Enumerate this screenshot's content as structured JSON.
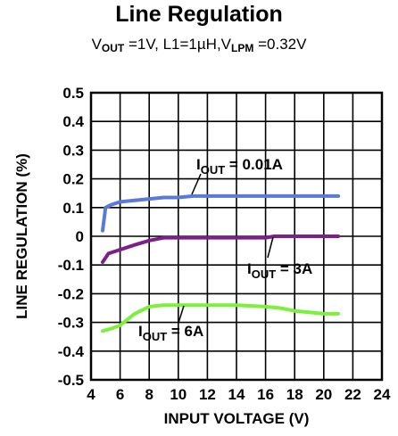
{
  "chart_data": {
    "type": "line",
    "title": "Line Regulation",
    "subtitle": {
      "text_parts": [
        {
          "t": "V"
        },
        {
          "sub": "OUT"
        },
        {
          "t": " =1V, L1=1µH,V"
        },
        {
          "sub": "LPM"
        },
        {
          "t": " =0.32V"
        }
      ]
    },
    "xlabel": "INPUT VOLTAGE (V)",
    "ylabel": "LINE REGULATION (%)",
    "xlim": [
      4,
      24
    ],
    "ylim": [
      -0.5,
      0.5
    ],
    "x_ticks": [
      4,
      6,
      8,
      10,
      12,
      14,
      16,
      18,
      20,
      22,
      24
    ],
    "y_ticks": [
      0.5,
      0.4,
      0.3,
      0.2,
      0.1,
      0,
      -0.1,
      -0.2,
      -0.3,
      -0.4,
      -0.5
    ],
    "y_tick_labels": [
      "0.5",
      "0.4",
      "0.3",
      "0.2",
      "0.1",
      "0",
      "-0.1",
      "-0.2",
      "-0.3",
      "-0.4",
      "-0.5"
    ],
    "grid": true,
    "legend": "none",
    "series": [
      {
        "color": "#5b79d6",
        "label_main": "I",
        "label_sub": "OUT",
        "label_rest": " = 0.01A",
        "x": [
          4.8,
          5.0,
          5.4,
          6.0,
          7.0,
          8.0,
          9.0,
          10.0,
          11.0,
          12.0,
          14.0,
          16.0,
          18.0,
          20.0,
          21.0
        ],
        "y": [
          0.02,
          0.1,
          0.11,
          0.12,
          0.125,
          0.13,
          0.135,
          0.135,
          0.14,
          0.14,
          0.14,
          0.14,
          0.14,
          0.14,
          0.14
        ]
      },
      {
        "color": "#7d1f8a",
        "label_main": "I",
        "label_sub": "OUT",
        "label_rest": " = 3A",
        "x": [
          4.8,
          5.2,
          5.8,
          7.0,
          8.0,
          9.0,
          10.0,
          12.0,
          14.0,
          16.0,
          16.6,
          18.0,
          20.0,
          21.0
        ],
        "y": [
          -0.09,
          -0.06,
          -0.05,
          -0.03,
          -0.015,
          -0.005,
          -0.005,
          -0.005,
          -0.005,
          -0.005,
          0.0,
          0.0,
          0.0,
          0.0
        ]
      },
      {
        "color": "#7cf03a",
        "label_main": "I",
        "label_sub": "OUT",
        "label_rest": " = 6A",
        "x": [
          4.8,
          5.5,
          6.0,
          7.0,
          8.0,
          9.0,
          10.0,
          12.0,
          14.0,
          16.0,
          17.0,
          18.0,
          19.0,
          20.0,
          21.0
        ],
        "y": [
          -0.33,
          -0.32,
          -0.31,
          -0.27,
          -0.245,
          -0.24,
          -0.24,
          -0.24,
          -0.24,
          -0.245,
          -0.25,
          -0.26,
          -0.265,
          -0.27,
          -0.27
        ]
      }
    ]
  }
}
